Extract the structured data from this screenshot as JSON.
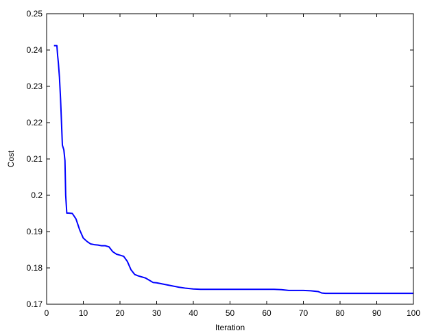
{
  "chart_data": {
    "type": "line",
    "xlabel": "Iteration",
    "ylabel": "Cost",
    "xlim": [
      0,
      100
    ],
    "ylim": [
      0.17,
      0.25
    ],
    "x_ticks": [
      0,
      10,
      20,
      30,
      40,
      50,
      60,
      70,
      80,
      90,
      100
    ],
    "y_ticks": [
      0.17,
      0.18,
      0.19,
      0.2,
      0.21,
      0.22,
      0.23,
      0.24,
      0.25
    ],
    "x_tick_labels": [
      "0",
      "10",
      "20",
      "30",
      "40",
      "50",
      "60",
      "70",
      "80",
      "90",
      "100"
    ],
    "y_tick_labels": [
      "0.17",
      "0.18",
      "0.19",
      "0.2",
      "0.21",
      "0.22",
      "0.23",
      "0.24",
      "0.25"
    ],
    "grid": false,
    "series": [
      {
        "color": "#0000ff",
        "x": [
          2,
          2.8,
          3,
          3.2,
          3.5,
          3.8,
          4,
          4.3,
          4.7,
          5,
          5.2,
          5.5,
          6,
          7,
          8,
          9,
          10,
          11,
          12,
          13,
          14,
          15,
          16,
          17,
          18,
          19,
          20,
          21,
          22,
          23,
          24,
          25,
          26,
          27,
          28,
          29,
          30,
          32,
          34,
          36,
          38,
          40,
          42,
          45,
          50,
          55,
          60,
          62,
          64,
          66,
          68,
          70,
          72,
          74,
          75,
          76,
          80,
          85,
          90,
          95,
          100
        ],
        "y": [
          0.2412,
          0.2412,
          0.2385,
          0.2365,
          0.2325,
          0.2265,
          0.2215,
          0.2138,
          0.2125,
          0.2095,
          0.2,
          0.1951,
          0.1951,
          0.195,
          0.1935,
          0.1905,
          0.1882,
          0.1873,
          0.1866,
          0.1864,
          0.1863,
          0.1861,
          0.1861,
          0.1858,
          0.1845,
          0.1838,
          0.1835,
          0.1832,
          0.1818,
          0.1795,
          0.1782,
          0.1778,
          0.1775,
          0.1772,
          0.1766,
          0.176,
          0.1759,
          0.1755,
          0.1751,
          0.1747,
          0.1744,
          0.1742,
          0.1741,
          0.1741,
          0.1741,
          0.1741,
          0.1741,
          0.1741,
          0.174,
          0.1738,
          0.1738,
          0.1738,
          0.1737,
          0.1735,
          0.1731,
          0.173,
          0.173,
          0.173,
          0.173,
          0.173,
          0.173
        ]
      }
    ]
  }
}
